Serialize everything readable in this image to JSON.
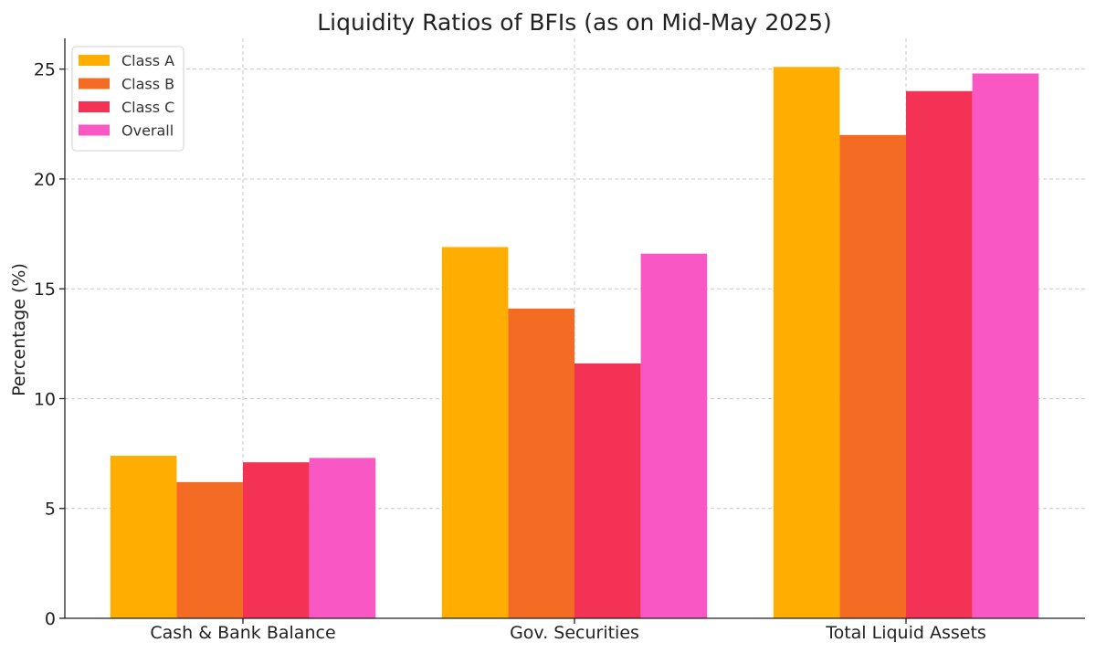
{
  "chart_data": {
    "type": "bar",
    "title": "Liquidity Ratios of BFIs (as on Mid-May 2025)",
    "xlabel": "",
    "ylabel": "Percentage (%)",
    "categories": [
      "Cash & Bank Balance",
      "Gov. Securities",
      "Total Liquid Assets"
    ],
    "series": [
      {
        "name": "Class A",
        "color": "#FFAE00",
        "values": [
          7.4,
          16.9,
          25.1
        ]
      },
      {
        "name": "Class B",
        "color": "#F46C24",
        "values": [
          6.2,
          14.1,
          22.0
        ]
      },
      {
        "name": "Class C",
        "color": "#F43255",
        "values": [
          7.1,
          11.6,
          24.0
        ]
      },
      {
        "name": "Overall",
        "color": "#F957C3",
        "values": [
          7.3,
          16.6,
          24.8
        ]
      }
    ],
    "ylim": [
      0,
      26.4
    ],
    "yticks": [
      0,
      5,
      10,
      15,
      20,
      25
    ],
    "grid": true,
    "legend": "top-left"
  }
}
